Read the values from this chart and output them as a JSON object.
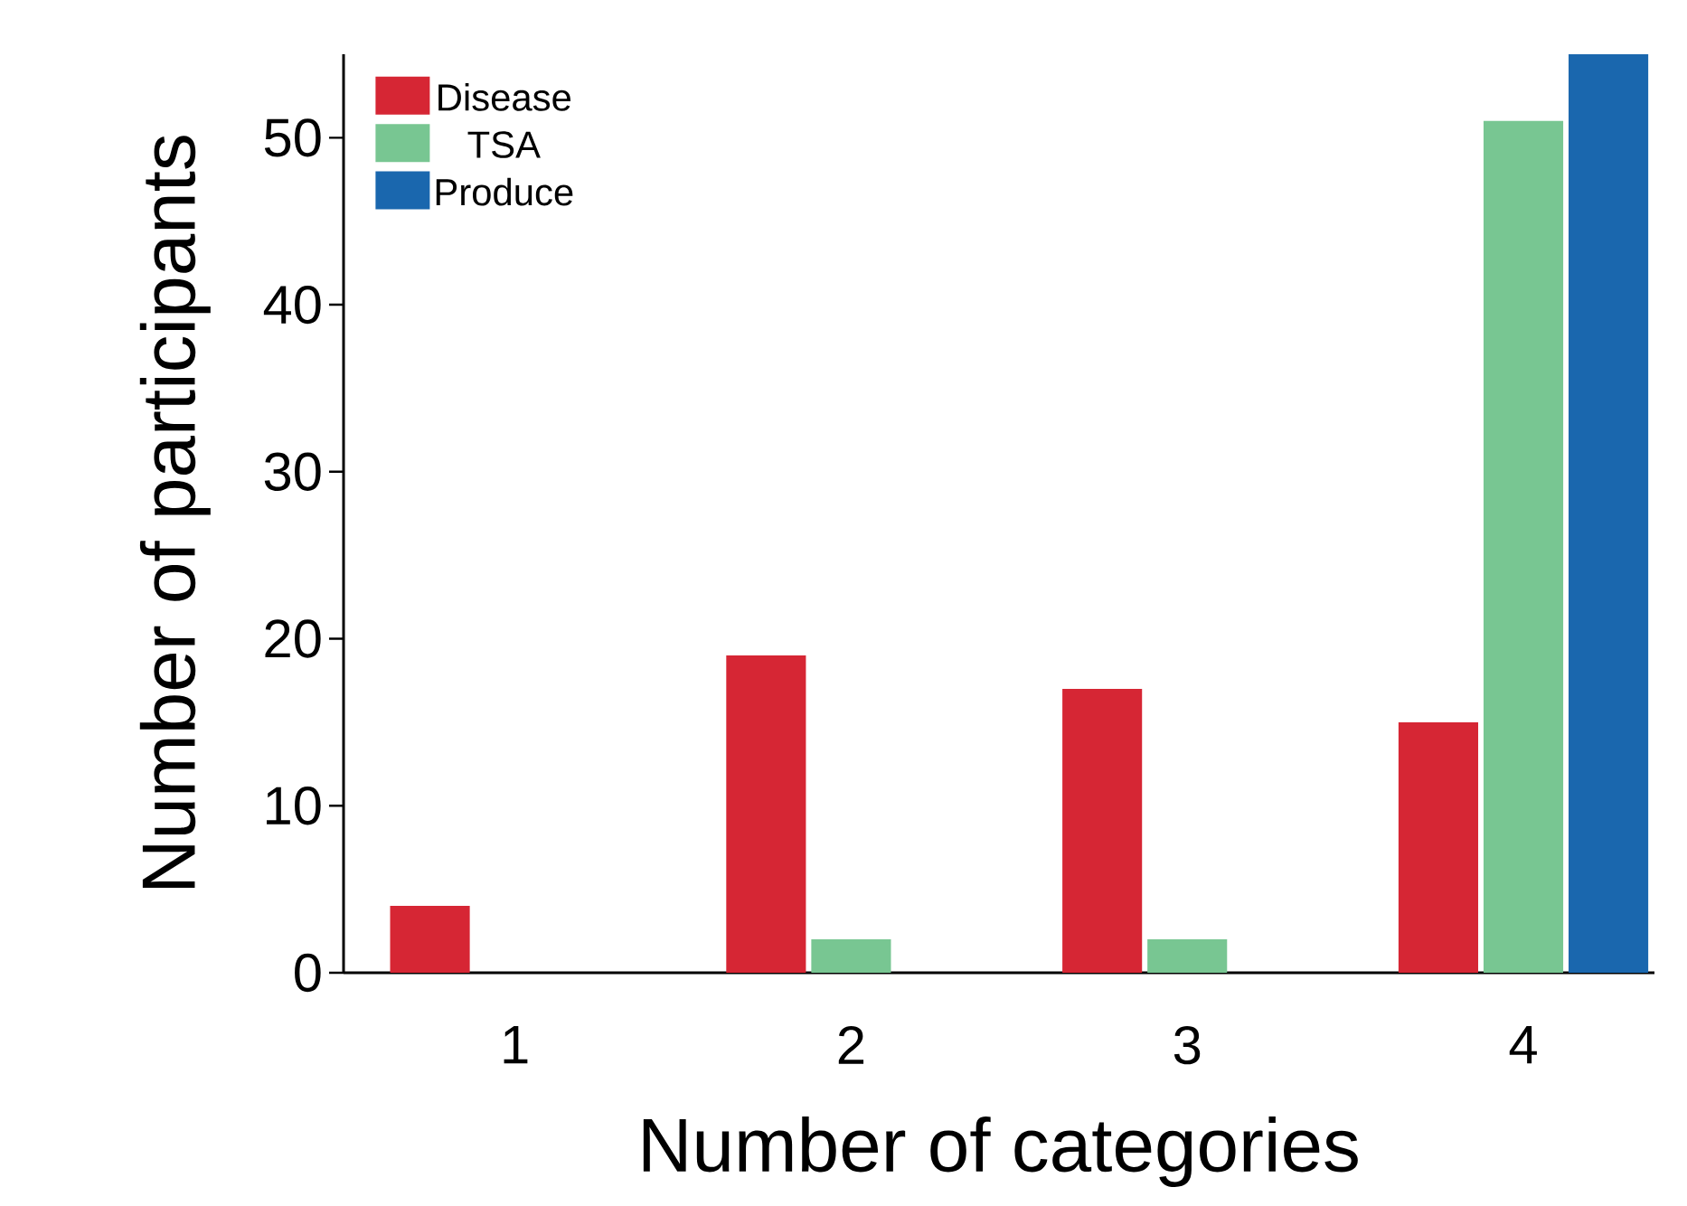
{
  "chart_data": {
    "type": "bar",
    "xlabel": "Number of categories",
    "ylabel": "Number of participants",
    "categories": [
      "1",
      "2",
      "3",
      "4"
    ],
    "series": [
      {
        "name": "Disease",
        "color": "#d62634",
        "values": [
          4,
          19,
          17,
          15
        ]
      },
      {
        "name": "TSA",
        "color": "#78c692",
        "values": [
          null,
          2,
          2,
          51
        ]
      },
      {
        "name": "Produce",
        "color": "#1a67ae",
        "values": [
          null,
          null,
          null,
          55
        ]
      }
    ],
    "ylim": [
      0,
      55
    ],
    "yticks": [
      0,
      10,
      20,
      30,
      40,
      50
    ],
    "legend": "top left"
  }
}
